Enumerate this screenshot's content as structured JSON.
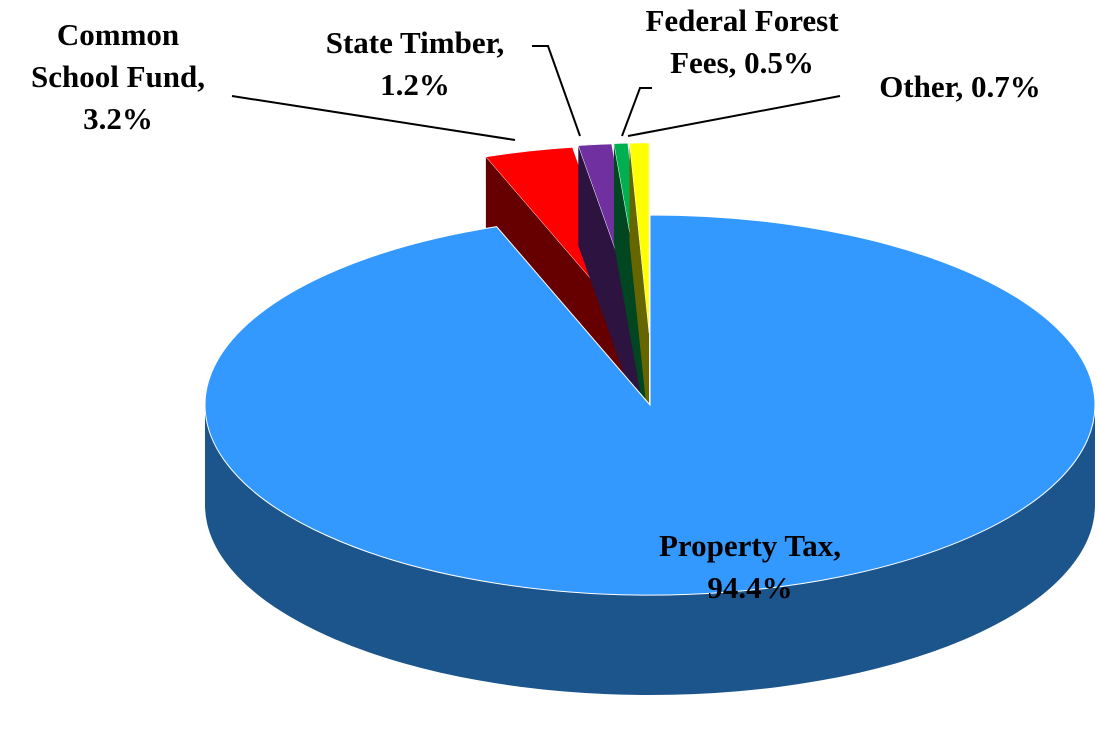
{
  "chart_data": {
    "type": "pie",
    "categories": [
      "Property Tax,",
      "Common School Fund,",
      "State Timber,",
      "Federal Forest Fees,",
      "Other,"
    ],
    "values": [
      94.4,
      3.2,
      1.2,
      0.5,
      0.7
    ],
    "value_labels": [
      "94.4%",
      "3.2%",
      "1.2%",
      "0.5%",
      "0.7%"
    ],
    "colors": [
      "#3399ff",
      "#ff0000",
      "#7030a0",
      "#00b050",
      "#ffff00"
    ]
  }
}
